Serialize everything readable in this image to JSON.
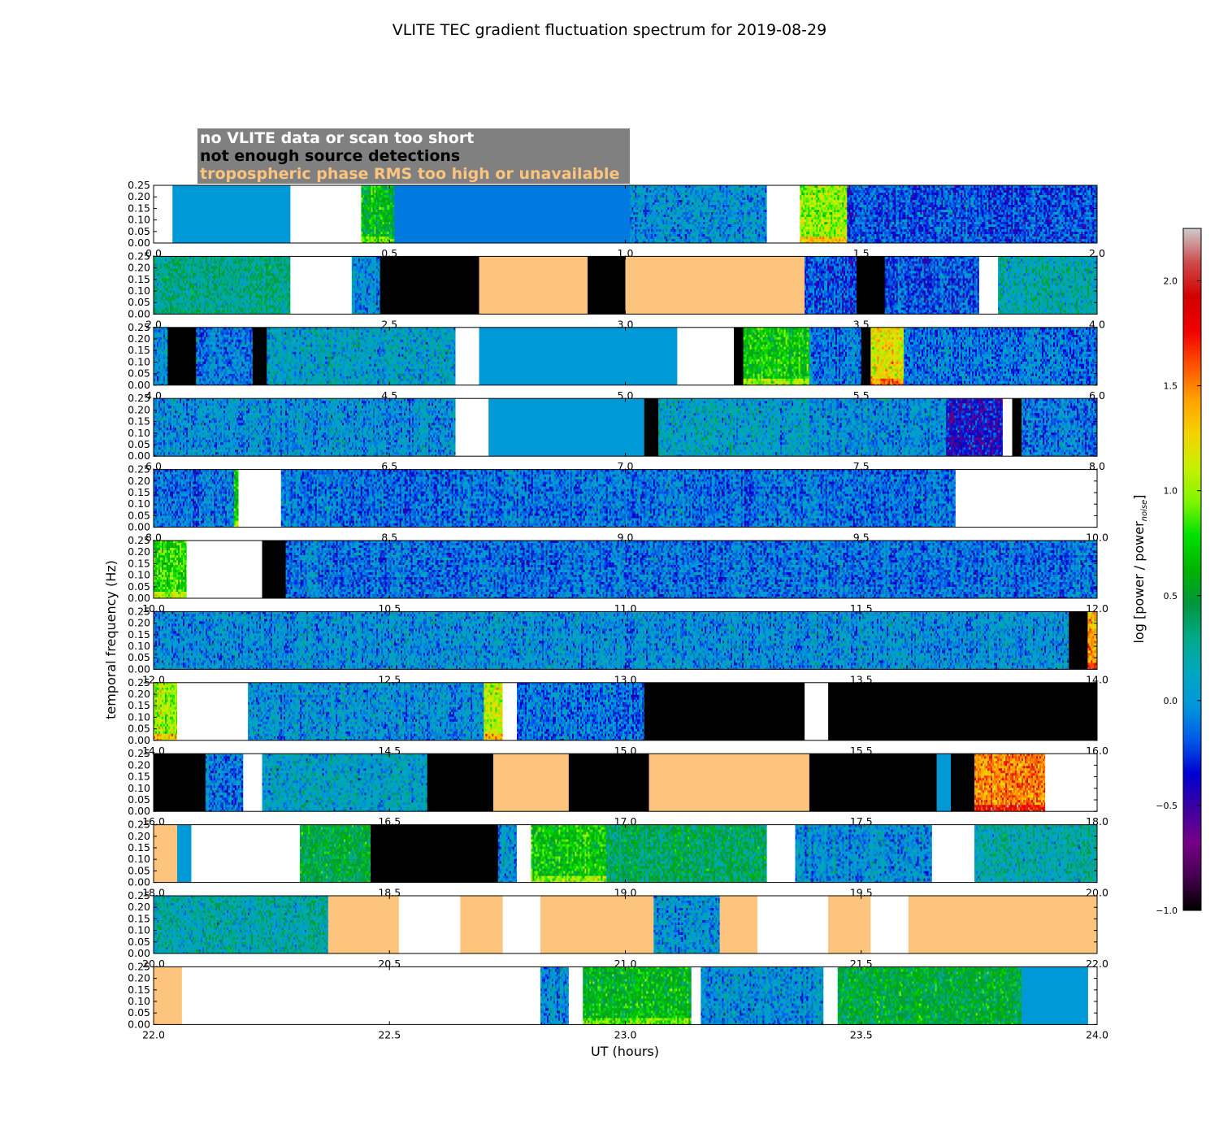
{
  "chart_data": {
    "type": "heatmap",
    "title": "VLITE TEC gradient fluctuation spectrum for 2019-08-29",
    "xlabel": "UT (hours)",
    "ylabel": "temporal frequency (Hz)",
    "colorbar": {
      "label_main": "log [power / power",
      "label_sub": "noise",
      "label_close": "]",
      "range": [
        -1.0,
        2.25
      ],
      "ticks": [
        "−1.0",
        "−0.5",
        "0.0",
        "0.5",
        "1.0",
        "1.5",
        "2.0"
      ],
      "tick_values": [
        -1.0,
        -0.5,
        0.0,
        0.5,
        1.0,
        1.5,
        2.0
      ]
    },
    "legend": [
      {
        "text": "no VLITE data or scan too short",
        "color": "#ffffff"
      },
      {
        "text": "not enough source detections",
        "color": "#000000"
      },
      {
        "text": "tropospheric phase RMS too high or unavailable",
        "color": "#fdc47d"
      }
    ],
    "colors": {
      "no_data": "#ffffff",
      "few_detections": "#000000",
      "tropo": "#fdc47d",
      "legend_box": "#808080",
      "flat": "#0a96d8"
    },
    "y_ticks": [
      "0.00",
      "0.05",
      "0.10",
      "0.15",
      "0.20",
      "0.25"
    ],
    "y_range": [
      0,
      0.25
    ],
    "hours_per_panel": 2,
    "panels": [
      {
        "start": 0,
        "x_ticks": [
          "0.0",
          "0.5",
          "1.0",
          "1.5",
          "2.0"
        ],
        "segments": [
          [
            "W",
            0,
            0.04
          ],
          [
            "F",
            0.04,
            0.29,
            0
          ],
          [
            "W",
            0.29,
            0.44
          ],
          [
            "S",
            0.44,
            0.51,
            0.6
          ],
          [
            "F",
            0.51,
            1.01,
            -0.1
          ],
          [
            "S",
            1.01,
            1.3,
            0
          ],
          [
            "W",
            1.3,
            1.37
          ],
          [
            "S",
            1.37,
            1.47,
            1.0
          ],
          [
            "S",
            1.47,
            2.0,
            -0.2
          ]
        ]
      },
      {
        "start": 2,
        "x_ticks": [
          "2.0",
          "2.5",
          "3.0",
          "3.5",
          "4.0"
        ],
        "segments": [
          [
            "S",
            2.0,
            2.29,
            0.3
          ],
          [
            "W",
            2.29,
            2.42
          ],
          [
            "S",
            2.42,
            2.48,
            0
          ],
          [
            "B",
            2.48,
            2.69
          ],
          [
            "O",
            2.69,
            2.92
          ],
          [
            "B",
            2.92,
            3.0
          ],
          [
            "O",
            3.0,
            3.38
          ],
          [
            "S",
            3.38,
            3.49,
            -0.2
          ],
          [
            "B",
            3.49,
            3.55
          ],
          [
            "S",
            3.55,
            3.75,
            -0.2
          ],
          [
            "W",
            3.75,
            3.79
          ],
          [
            "S",
            3.79,
            4.0,
            0.2
          ]
        ]
      },
      {
        "start": 4,
        "x_ticks": [
          "4.0",
          "4.5",
          "5.0",
          "5.5",
          "6.0"
        ],
        "segments": [
          [
            "S",
            4.0,
            4.03,
            0
          ],
          [
            "B",
            4.03,
            4.09
          ],
          [
            "S",
            4.09,
            4.21,
            -0.1
          ],
          [
            "B",
            4.21,
            4.24
          ],
          [
            "S",
            4.24,
            4.64,
            0.1
          ],
          [
            "W",
            4.64,
            4.69
          ],
          [
            "F",
            4.69,
            5.11,
            0
          ],
          [
            "W",
            5.11,
            5.23
          ],
          [
            "B",
            5.23,
            5.25
          ],
          [
            "S",
            5.25,
            5.39,
            0.7
          ],
          [
            "S",
            5.39,
            5.5,
            -0.1
          ],
          [
            "B",
            5.5,
            5.52
          ],
          [
            "S",
            5.52,
            5.59,
            1.2
          ],
          [
            "S",
            5.59,
            6.0,
            -0.1
          ]
        ]
      },
      {
        "start": 6,
        "x_ticks": [
          "6.0",
          "6.5",
          "7.0",
          "7.5",
          "8.0"
        ],
        "segments": [
          [
            "S",
            6.0,
            6.64,
            0
          ],
          [
            "W",
            6.64,
            6.71
          ],
          [
            "F",
            6.71,
            7.04,
            0
          ],
          [
            "B",
            7.04,
            7.07
          ],
          [
            "S",
            7.07,
            7.4,
            0.1
          ],
          [
            "S",
            7.4,
            7.68,
            0
          ],
          [
            "S",
            7.68,
            7.8,
            -0.4
          ],
          [
            "W",
            7.8,
            7.82
          ],
          [
            "B",
            7.82,
            7.84
          ],
          [
            "S",
            7.84,
            8.0,
            -0.1
          ]
        ]
      },
      {
        "start": 8,
        "x_ticks": [
          "8.0",
          "8.5",
          "9.0",
          "9.5",
          "10.0"
        ],
        "segments": [
          [
            "S",
            8.0,
            8.17,
            -0.1
          ],
          [
            "S",
            8.17,
            8.18,
            0.7
          ],
          [
            "W",
            8.18,
            8.27
          ],
          [
            "S",
            8.27,
            9.7,
            -0.1
          ],
          [
            "W",
            9.7,
            10.0
          ]
        ]
      },
      {
        "start": 10,
        "x_ticks": [
          "10.0",
          "10.5",
          "11.0",
          "11.5",
          "12.0"
        ],
        "segments": [
          [
            "S",
            10.0,
            10.07,
            0.8
          ],
          [
            "W",
            10.07,
            10.23
          ],
          [
            "B",
            10.23,
            10.28
          ],
          [
            "S",
            10.28,
            12.0,
            -0.1
          ]
        ]
      },
      {
        "start": 12,
        "x_ticks": [
          "12.0",
          "12.5",
          "13.0",
          "13.5",
          "14.0"
        ],
        "segments": [
          [
            "S",
            12.0,
            13.94,
            0
          ],
          [
            "B",
            13.94,
            13.98
          ],
          [
            "S",
            13.98,
            14.0,
            1.4
          ]
        ]
      },
      {
        "start": 14,
        "x_ticks": [
          "14.0",
          "14.5",
          "15.0",
          "15.5",
          "16.0"
        ],
        "segments": [
          [
            "S",
            14.0,
            14.05,
            1.0
          ],
          [
            "W",
            14.05,
            14.2
          ],
          [
            "S",
            14.2,
            14.7,
            0
          ],
          [
            "S",
            14.7,
            14.74,
            1.1
          ],
          [
            "W",
            14.74,
            14.77
          ],
          [
            "S",
            14.77,
            15.04,
            -0.1
          ],
          [
            "B",
            15.04,
            15.38
          ],
          [
            "W",
            15.38,
            15.43
          ],
          [
            "B",
            15.43,
            16.0
          ]
        ]
      },
      {
        "start": 16,
        "x_ticks": [
          "16.0",
          "16.5",
          "17.0",
          "17.5",
          "18.0"
        ],
        "segments": [
          [
            "B",
            16.0,
            16.11
          ],
          [
            "S",
            16.11,
            16.19,
            -0.1
          ],
          [
            "W",
            16.19,
            16.23
          ],
          [
            "S",
            16.23,
            16.58,
            0.1
          ],
          [
            "B",
            16.58,
            16.72
          ],
          [
            "O",
            16.72,
            16.88
          ],
          [
            "B",
            16.88,
            17.05
          ],
          [
            "O",
            17.05,
            17.39
          ],
          [
            "B",
            17.39,
            17.66
          ],
          [
            "F",
            17.66,
            17.69,
            0
          ],
          [
            "B",
            17.69,
            17.74
          ],
          [
            "S",
            17.74,
            17.89,
            1.5
          ],
          [
            "W",
            17.89,
            18.0
          ]
        ]
      },
      {
        "start": 18,
        "x_ticks": [
          "18.0",
          "18.5",
          "19.0",
          "19.5",
          "20.0"
        ],
        "segments": [
          [
            "O",
            18.0,
            18.05
          ],
          [
            "F",
            18.05,
            18.08,
            0
          ],
          [
            "W",
            18.08,
            18.31
          ],
          [
            "S",
            18.31,
            18.46,
            0.5
          ],
          [
            "B",
            18.46,
            18.73
          ],
          [
            "S",
            18.73,
            18.77,
            0
          ],
          [
            "W",
            18.77,
            18.8
          ],
          [
            "S",
            18.8,
            18.96,
            0.7
          ],
          [
            "S",
            18.96,
            19.3,
            0.4
          ],
          [
            "W",
            19.3,
            19.36
          ],
          [
            "S",
            19.36,
            19.65,
            0
          ],
          [
            "W",
            19.65,
            19.74
          ],
          [
            "S",
            19.74,
            20.0,
            0.2
          ]
        ]
      },
      {
        "start": 20,
        "x_ticks": [
          "20.0",
          "20.5",
          "21.0",
          "21.5",
          "22.0"
        ],
        "segments": [
          [
            "S",
            20.0,
            20.37,
            0.2
          ],
          [
            "O",
            20.37,
            20.52
          ],
          [
            "W",
            20.52,
            20.65
          ],
          [
            "O",
            20.65,
            20.74
          ],
          [
            "W",
            20.74,
            20.82
          ],
          [
            "O",
            20.82,
            21.06
          ],
          [
            "S",
            21.06,
            21.2,
            0
          ],
          [
            "O",
            21.2,
            21.28
          ],
          [
            "W",
            21.28,
            21.43
          ],
          [
            "O",
            21.43,
            21.52
          ],
          [
            "W",
            21.52,
            21.6
          ],
          [
            "O",
            21.6,
            22.0
          ]
        ]
      },
      {
        "start": 22,
        "x_ticks": [
          "22.0",
          "22.5",
          "23.0",
          "23.5",
          "24.0"
        ],
        "segments": [
          [
            "O",
            22.0,
            22.06
          ],
          [
            "W",
            22.06,
            22.82
          ],
          [
            "S",
            22.82,
            22.88,
            0
          ],
          [
            "W",
            22.88,
            22.91
          ],
          [
            "S",
            22.91,
            23.14,
            0.6
          ],
          [
            "W",
            23.14,
            23.16
          ],
          [
            "S",
            23.16,
            23.42,
            0
          ],
          [
            "W",
            23.42,
            23.45
          ],
          [
            "S",
            23.45,
            23.84,
            0.5
          ],
          [
            "F",
            23.84,
            23.98,
            0
          ]
        ]
      }
    ]
  }
}
